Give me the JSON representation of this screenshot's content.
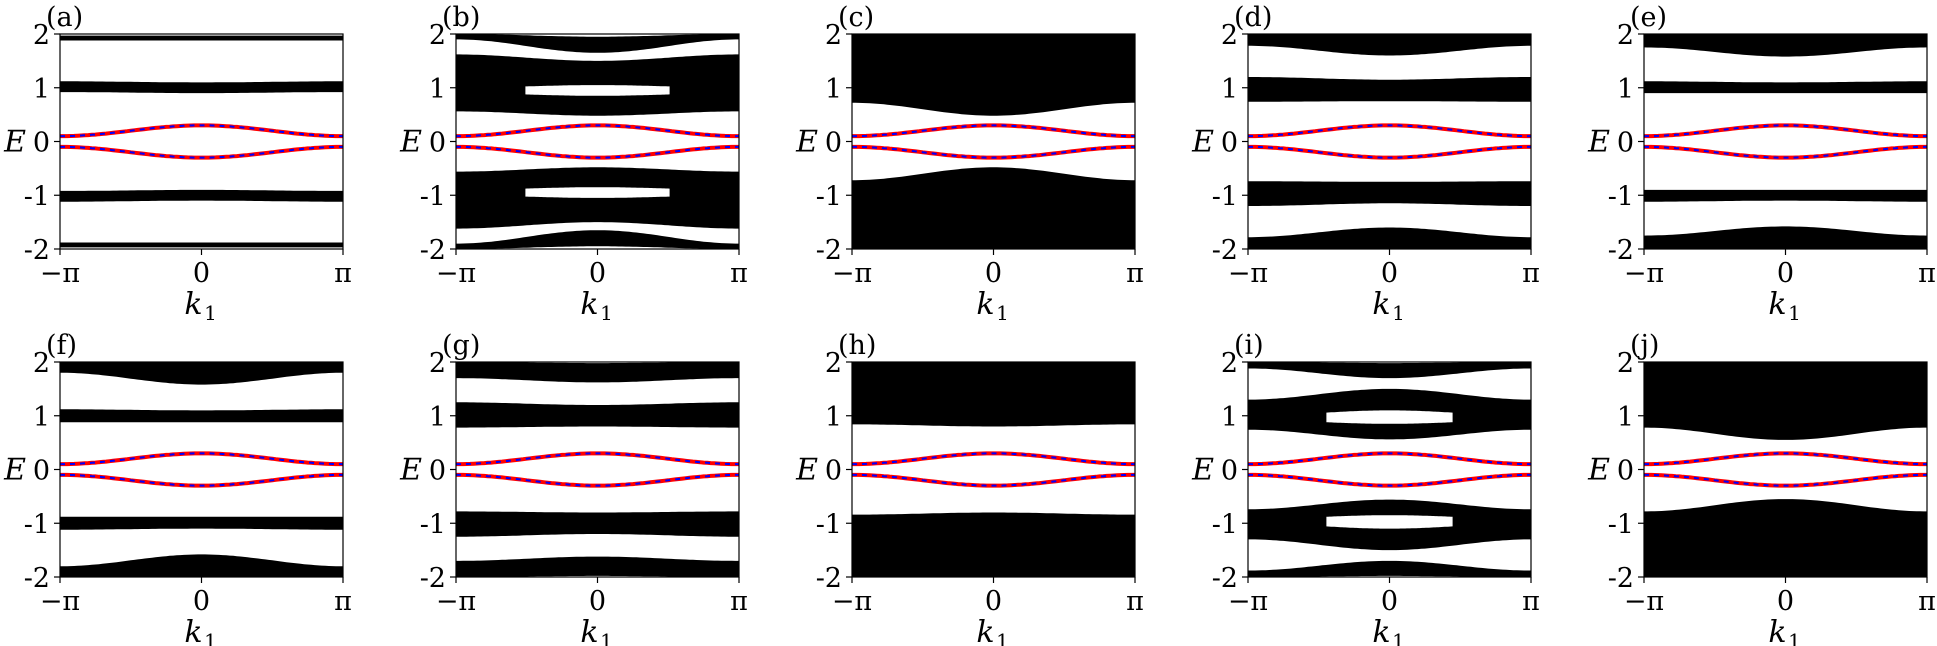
{
  "chart_data": {
    "type": "line",
    "x_label": "k",
    "x_label_subscript": "1",
    "y_label": "E",
    "x_ticks": [
      "−π",
      "0",
      "π"
    ],
    "x_tick_values": [
      -3.14159,
      0,
      3.14159
    ],
    "y_ticks": [
      "2",
      "1",
      "0",
      "-1",
      "-2"
    ],
    "y_tick_values": [
      2,
      1,
      0,
      -1,
      -2
    ],
    "xlim": [
      -3.14159,
      3.14159
    ],
    "ylim": [
      -2,
      2
    ],
    "colors": {
      "bulk": "#000000",
      "edge_red": "#ff0000",
      "edge_blue": "#0000ff"
    },
    "edge_states": {
      "upper": {
        "at_zero": 0.3,
        "at_pi": 0.1
      },
      "lower": {
        "at_zero": -0.3,
        "at_pi": -0.1
      }
    },
    "panels": [
      {
        "label": "(a)",
        "bands": [
          {
            "top": [
              1.97,
              1.97,
              1.97
            ],
            "bottom": [
              1.88,
              1.88,
              1.88
            ]
          },
          {
            "top": [
              1.12,
              1.1,
              1.12
            ],
            "bottom": [
              0.92,
              0.9,
              0.92
            ]
          },
          {
            "top": [
              -0.92,
              -0.9,
              -0.92
            ],
            "bottom": [
              -1.12,
              -1.1,
              -1.12
            ]
          },
          {
            "top": [
              -1.88,
              -1.88,
              -1.88
            ],
            "bottom": [
              -1.97,
              -1.97,
              -1.97
            ]
          }
        ]
      },
      {
        "label": "(b)",
        "bands": [
          {
            "top": [
              2.0,
              1.95,
              2.0
            ],
            "bottom": [
              1.9,
              1.65,
              1.9
            ]
          },
          {
            "top": [
              1.62,
              1.5,
              1.62
            ],
            "bottom": [
              0.56,
              0.48,
              0.56
            ]
          },
          {
            "top": [
              -0.56,
              -0.48,
              -0.56
            ],
            "bottom": [
              -1.62,
              -1.5,
              -1.62
            ]
          },
          {
            "top": [
              -1.9,
              -1.65,
              -1.9
            ],
            "bottom": [
              -2.0,
              -1.95,
              -2.0
            ]
          }
        ],
        "gaps": [
          {
            "top": [
              1.0,
              1.05,
              1.0
            ],
            "bottom": [
              0.9,
              0.85,
              0.9
            ],
            "x_range": [
              -1.6,
              1.6
            ]
          },
          {
            "top": [
              -0.9,
              -0.85,
              -0.9
            ],
            "bottom": [
              -1.0,
              -1.05,
              -1.0
            ],
            "x_range": [
              -1.6,
              1.6
            ]
          }
        ]
      },
      {
        "label": "(c)",
        "bands": [
          {
            "top": [
              2.0,
              2.0,
              2.0
            ],
            "bottom": [
              0.72,
              0.48,
              0.72
            ]
          },
          {
            "top": [
              -0.72,
              -0.48,
              -0.72
            ],
            "bottom": [
              -2.0,
              -2.0,
              -2.0
            ]
          }
        ]
      },
      {
        "label": "(d)",
        "bands": [
          {
            "top": [
              2.0,
              2.0,
              2.0
            ],
            "bottom": [
              1.78,
              1.6,
              1.78
            ]
          },
          {
            "top": [
              1.2,
              1.15,
              1.2
            ],
            "bottom": [
              0.74,
              0.75,
              0.74
            ]
          },
          {
            "top": [
              -0.74,
              -0.75,
              -0.74
            ],
            "bottom": [
              -1.2,
              -1.15,
              -1.2
            ]
          },
          {
            "top": [
              -1.78,
              -1.6,
              -1.78
            ],
            "bottom": [
              -2.0,
              -2.0,
              -2.0
            ]
          }
        ]
      },
      {
        "label": "(e)",
        "bands": [
          {
            "top": [
              2.0,
              2.0,
              2.0
            ],
            "bottom": [
              1.75,
              1.58,
              1.75
            ]
          },
          {
            "top": [
              1.12,
              1.1,
              1.12
            ],
            "bottom": [
              0.9,
              0.9,
              0.9
            ]
          },
          {
            "top": [
              -0.9,
              -0.9,
              -0.9
            ],
            "bottom": [
              -1.12,
              -1.1,
              -1.12
            ]
          },
          {
            "top": [
              -1.75,
              -1.58,
              -1.75
            ],
            "bottom": [
              -2.0,
              -2.0,
              -2.0
            ]
          }
        ]
      },
      {
        "label": "(f)",
        "bands": [
          {
            "top": [
              2.0,
              2.0,
              2.0
            ],
            "bottom": [
              1.8,
              1.58,
              1.8
            ]
          },
          {
            "top": [
              1.12,
              1.1,
              1.12
            ],
            "bottom": [
              0.88,
              0.88,
              0.88
            ]
          },
          {
            "top": [
              -0.88,
              -0.88,
              -0.88
            ],
            "bottom": [
              -1.12,
              -1.1,
              -1.12
            ]
          },
          {
            "top": [
              -1.8,
              -1.58,
              -1.8
            ],
            "bottom": [
              -2.0,
              -2.0,
              -2.0
            ]
          }
        ]
      },
      {
        "label": "(g)",
        "bands": [
          {
            "top": [
              2.0,
              1.98,
              2.0
            ],
            "bottom": [
              1.7,
              1.62,
              1.7
            ]
          },
          {
            "top": [
              1.25,
              1.2,
              1.25
            ],
            "bottom": [
              0.78,
              0.8,
              0.78
            ]
          },
          {
            "top": [
              -0.78,
              -0.8,
              -0.78
            ],
            "bottom": [
              -1.25,
              -1.2,
              -1.25
            ]
          },
          {
            "top": [
              -1.7,
              -1.62,
              -1.7
            ],
            "bottom": [
              -2.0,
              -1.98,
              -2.0
            ]
          }
        ]
      },
      {
        "label": "(h)",
        "bands": [
          {
            "top": [
              2.0,
              2.0,
              2.0
            ],
            "bottom": [
              0.84,
              0.8,
              0.84
            ]
          },
          {
            "top": [
              -0.84,
              -0.8,
              -0.84
            ],
            "bottom": [
              -2.0,
              -2.0,
              -2.0
            ]
          }
        ]
      },
      {
        "label": "(i)",
        "bands": [
          {
            "top": [
              2.0,
              1.98,
              2.0
            ],
            "bottom": [
              1.88,
              1.7,
              1.88
            ]
          },
          {
            "top": [
              1.3,
              1.5,
              1.3
            ],
            "bottom": [
              0.74,
              0.56,
              0.74
            ]
          },
          {
            "top": [
              -0.74,
              -0.56,
              -0.74
            ],
            "bottom": [
              -1.3,
              -1.5,
              -1.3
            ]
          },
          {
            "top": [
              -1.88,
              -1.7,
              -1.88
            ],
            "bottom": [
              -2.0,
              -1.98,
              -2.0
            ]
          }
        ],
        "gaps": [
          {
            "top": [
              1.0,
              1.1,
              1.0
            ],
            "bottom": [
              0.92,
              0.85,
              0.92
            ],
            "x_range": [
              -1.4,
              1.4
            ]
          },
          {
            "top": [
              -0.92,
              -0.85,
              -0.92
            ],
            "bottom": [
              -1.0,
              -1.1,
              -1.0
            ],
            "x_range": [
              -1.4,
              1.4
            ]
          }
        ]
      },
      {
        "label": "(j)",
        "bands": [
          {
            "top": [
              2.0,
              2.0,
              2.0
            ],
            "bottom": [
              0.78,
              0.55,
              0.78
            ]
          },
          {
            "top": [
              -0.78,
              -0.55,
              -0.78
            ],
            "bottom": [
              -2.0,
              -2.0,
              -2.0
            ]
          }
        ]
      }
    ]
  }
}
